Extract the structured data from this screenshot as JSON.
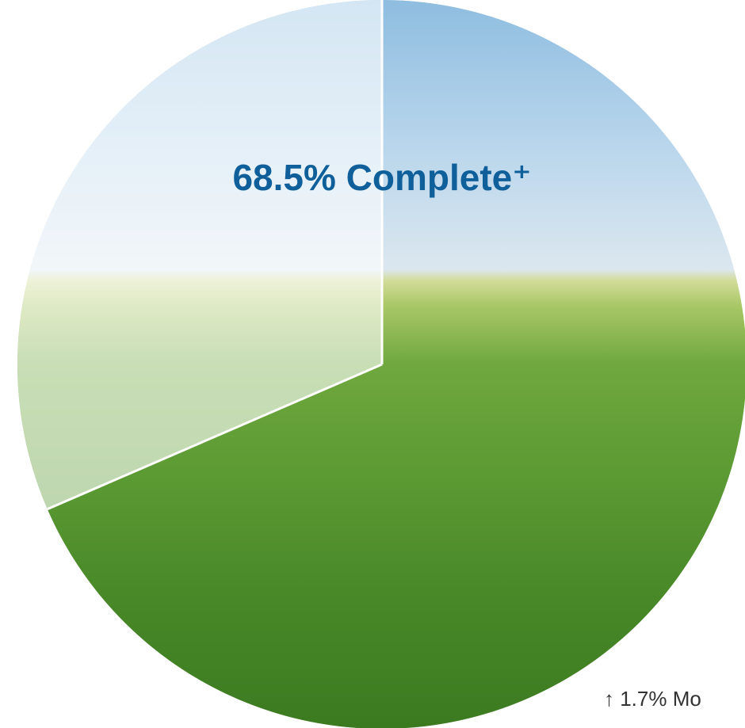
{
  "chart_data": {
    "type": "pie",
    "values": [
      68.5
    ],
    "value_labels": [
      "68.5% Complete⁺"
    ],
    "annotation": "↑ 1.7% Mo"
  }
}
